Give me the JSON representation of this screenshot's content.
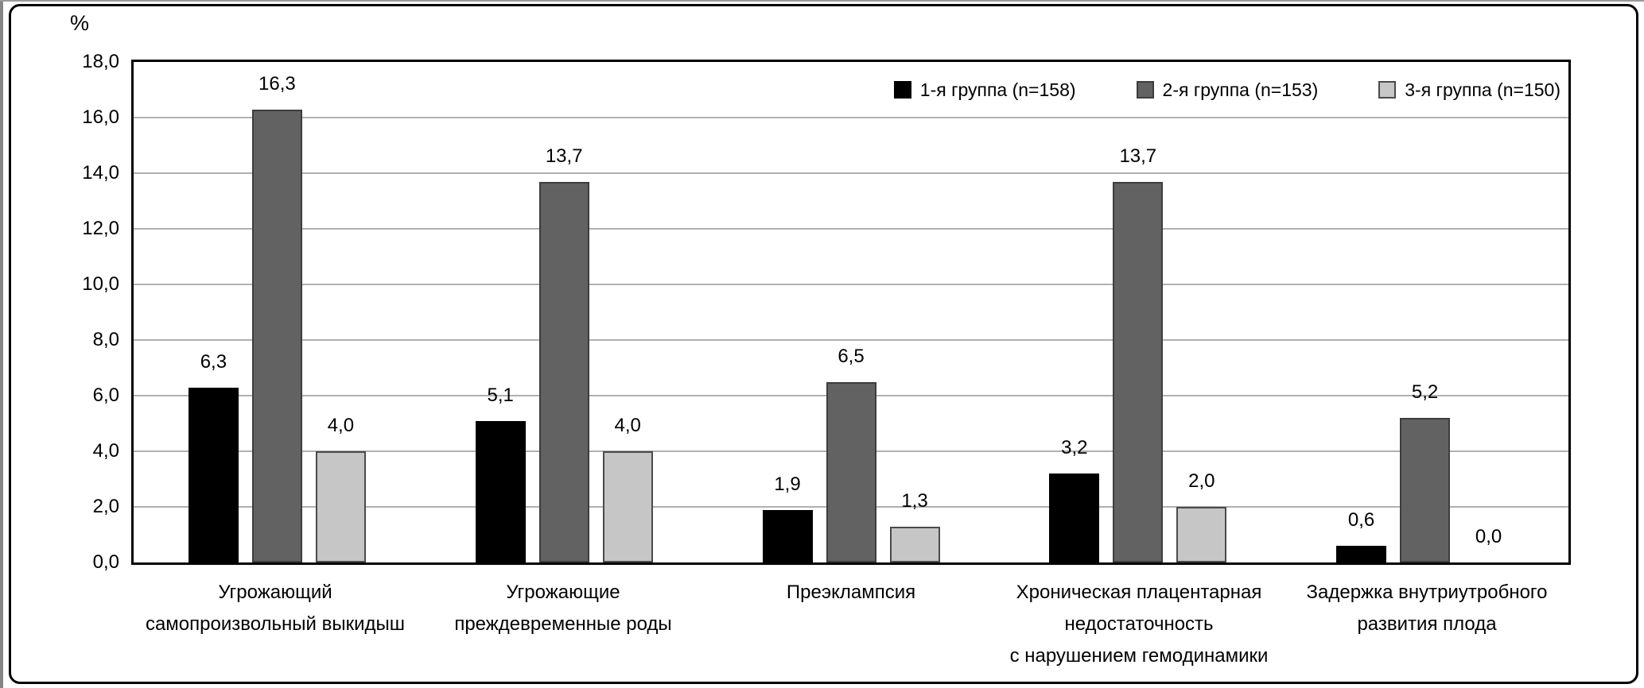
{
  "chart_data": {
    "type": "bar",
    "title": "",
    "xlabel": "",
    "ylabel": "%",
    "ylim": [
      0,
      18
    ],
    "ytick_step": 2,
    "ytick_labels": [
      "0,0",
      "2,0",
      "4,0",
      "6,0",
      "8,0",
      "10,0",
      "12,0",
      "14,0",
      "16,0",
      "18,0"
    ],
    "grid": true,
    "legend_position": "top-right-inside",
    "categories": [
      [
        "Угрожающий",
        "самопроизвольный выкидыш"
      ],
      [
        "Угрожающие",
        "преждевременные роды"
      ],
      [
        "Преэклампсия"
      ],
      [
        "Хроническая плацентарная",
        "недостаточность",
        "с нарушением гемодинамики"
      ],
      [
        "Задержка внутриутробного",
        "развития плода"
      ]
    ],
    "series": [
      {
        "name": "1-я группа (n=158)",
        "color": "#000000",
        "border_color": "#000000",
        "values": [
          6.3,
          5.1,
          1.9,
          3.2,
          0.6
        ],
        "value_labels": [
          "6,3",
          "5,1",
          "1,9",
          "3,2",
          "0,6"
        ]
      },
      {
        "name": "2-я группа (n=153)",
        "color": "#626262",
        "border_color": "#3d3d3d",
        "values": [
          16.3,
          13.7,
          6.5,
          13.7,
          5.2
        ],
        "value_labels": [
          "16,3",
          "13,7",
          "6,5",
          "13,7",
          "5,2"
        ]
      },
      {
        "name": "3-я группа (n=150)",
        "color": "#c6c6c6",
        "border_color": "#4a4a4a",
        "values": [
          4.0,
          4.0,
          1.3,
          2.0,
          0.0
        ],
        "value_labels": [
          "4,0",
          "4,0",
          "1,3",
          "2,0",
          "0,0"
        ]
      }
    ]
  },
  "colors": {
    "gridline": "#b0b0b0",
    "axis": "#000000",
    "background": "#ffffff"
  }
}
